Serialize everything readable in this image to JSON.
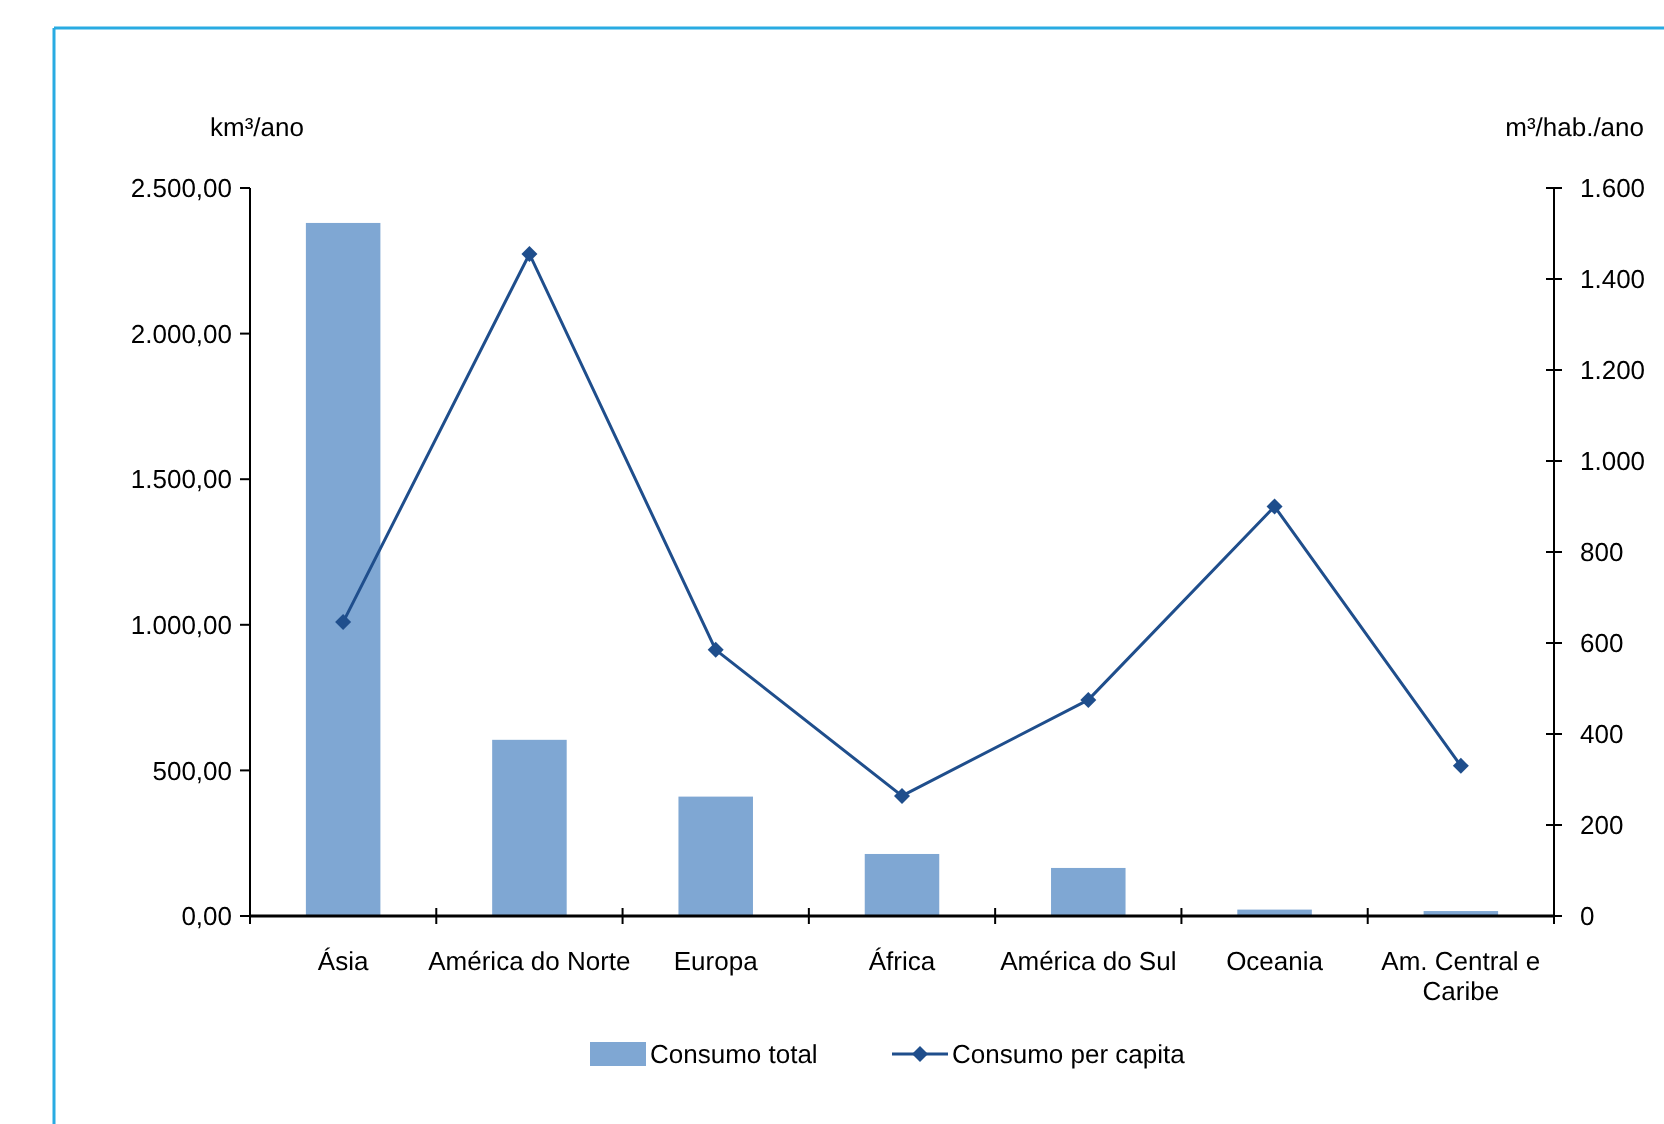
{
  "chart_data": {
    "type": "bar",
    "categories": [
      "Ásia",
      "América do Norte",
      "Europa",
      "África",
      "América do Sul",
      "Oceania",
      "Am. Central e Caribe"
    ],
    "ylabel": "km³/ano",
    "y2label": "m³/hab./ano",
    "ylim": [
      0,
      2500
    ],
    "yticks": [
      {
        "value": 0,
        "label": "0,00"
      },
      {
        "value": 500,
        "label": "500,00"
      },
      {
        "value": 1000,
        "label": "1.000,00"
      },
      {
        "value": 1500,
        "label": "1.500,00"
      },
      {
        "value": 2000,
        "label": "2.000,00"
      },
      {
        "value": 2500,
        "label": "2.500,00"
      }
    ],
    "y2lim": [
      0,
      1600
    ],
    "y2ticks": [
      0,
      200,
      400,
      600,
      800,
      {
        "value": 1000,
        "label": "1.000"
      },
      {
        "value": 1200,
        "label": "1.200"
      },
      {
        "value": 1400,
        "label": "1.400"
      },
      {
        "value": 1600,
        "label": "1.600"
      }
    ],
    "series": [
      {
        "name": "Consumo total",
        "color": "#7fa7d3",
        "values": [
          2380,
          605,
          410,
          213,
          165,
          22,
          17
        ]
      },
      {
        "name": "Consumo per capita",
        "type": "line",
        "axis": "y2",
        "color": "#1f4e8c",
        "marker": "diamond",
        "line_style": "solid",
        "values": [
          646,
          1455,
          585,
          264,
          475,
          900,
          330
        ]
      }
    ],
    "grid": false,
    "legend": "bottom"
  }
}
